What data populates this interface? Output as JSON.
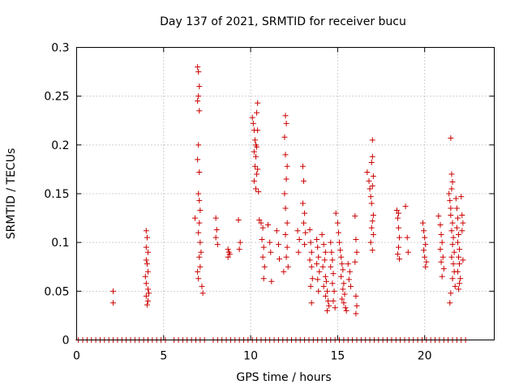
{
  "chart_data": {
    "type": "scatter",
    "title": "Day 137 of 2021, SRMTID for receiver bucu",
    "xlabel": "GPS time / hours",
    "ylabel": "SRMTID / TECUs",
    "xlim": [
      0,
      24
    ],
    "ylim": [
      0,
      0.3
    ],
    "xticks": [
      0,
      5,
      10,
      15,
      20
    ],
    "xtick_labels": [
      "0",
      "5",
      "10",
      "15",
      "20"
    ],
    "yticks": [
      0,
      0.05,
      0.1,
      0.15,
      0.2,
      0.25,
      0.3
    ],
    "ytick_labels": [
      "0",
      "0.05",
      "0.1",
      "0.15",
      "0.2",
      "0.25",
      "0.3"
    ],
    "grid": true,
    "marker": "+",
    "series": [
      {
        "name": "SRMTID",
        "color": "#cc0000",
        "points": [
          [
            2.1,
            0.05
          ],
          [
            2.1,
            0.038
          ],
          [
            4.0,
            0.112
          ],
          [
            4.05,
            0.105
          ],
          [
            4.0,
            0.095
          ],
          [
            4.1,
            0.09
          ],
          [
            4.0,
            0.082
          ],
          [
            4.05,
            0.078
          ],
          [
            4.1,
            0.07
          ],
          [
            3.95,
            0.065
          ],
          [
            4.0,
            0.058
          ],
          [
            4.1,
            0.052
          ],
          [
            4.15,
            0.048
          ],
          [
            4.0,
            0.045
          ],
          [
            4.1,
            0.04
          ],
          [
            4.05,
            0.036
          ],
          [
            6.8,
            0.125
          ],
          [
            6.95,
            0.28
          ],
          [
            7.0,
            0.275
          ],
          [
            7.05,
            0.26
          ],
          [
            7.0,
            0.25
          ],
          [
            6.95,
            0.245
          ],
          [
            7.05,
            0.235
          ],
          [
            7.0,
            0.2
          ],
          [
            6.95,
            0.185
          ],
          [
            7.05,
            0.172
          ],
          [
            7.0,
            0.15
          ],
          [
            7.05,
            0.143
          ],
          [
            7.1,
            0.133
          ],
          [
            7.05,
            0.12
          ],
          [
            7.0,
            0.11
          ],
          [
            7.1,
            0.1
          ],
          [
            7.15,
            0.09
          ],
          [
            7.05,
            0.085
          ],
          [
            7.1,
            0.075
          ],
          [
            6.95,
            0.07
          ],
          [
            7.0,
            0.063
          ],
          [
            7.2,
            0.055
          ],
          [
            7.25,
            0.048
          ],
          [
            8.0,
            0.125
          ],
          [
            8.05,
            0.113
          ],
          [
            8.0,
            0.105
          ],
          [
            8.1,
            0.098
          ],
          [
            8.7,
            0.093
          ],
          [
            8.75,
            0.09
          ],
          [
            8.8,
            0.088
          ],
          [
            8.7,
            0.085
          ],
          [
            9.3,
            0.123
          ],
          [
            9.4,
            0.1
          ],
          [
            9.35,
            0.093
          ],
          [
            10.1,
            0.228
          ],
          [
            10.15,
            0.222
          ],
          [
            10.2,
            0.215
          ],
          [
            10.25,
            0.205
          ],
          [
            10.3,
            0.2
          ],
          [
            10.2,
            0.193
          ],
          [
            10.3,
            0.188
          ],
          [
            10.25,
            0.178
          ],
          [
            10.35,
            0.17
          ],
          [
            10.2,
            0.163
          ],
          [
            10.3,
            0.155
          ],
          [
            10.4,
            0.243
          ],
          [
            10.35,
            0.233
          ],
          [
            10.4,
            0.215
          ],
          [
            10.35,
            0.198
          ],
          [
            10.4,
            0.175
          ],
          [
            10.45,
            0.152
          ],
          [
            10.5,
            0.123
          ],
          [
            10.6,
            0.12
          ],
          [
            10.7,
            0.115
          ],
          [
            10.65,
            0.103
          ],
          [
            10.75,
            0.095
          ],
          [
            10.7,
            0.085
          ],
          [
            10.8,
            0.075
          ],
          [
            10.75,
            0.063
          ],
          [
            11.0,
            0.118
          ],
          [
            11.1,
            0.1
          ],
          [
            11.15,
            0.09
          ],
          [
            11.2,
            0.06
          ],
          [
            11.5,
            0.112
          ],
          [
            11.6,
            0.098
          ],
          [
            11.65,
            0.083
          ],
          [
            12.0,
            0.23
          ],
          [
            12.05,
            0.222
          ],
          [
            11.95,
            0.208
          ],
          [
            12.0,
            0.19
          ],
          [
            12.1,
            0.178
          ],
          [
            12.05,
            0.165
          ],
          [
            11.95,
            0.15
          ],
          [
            12.0,
            0.135
          ],
          [
            12.1,
            0.12
          ],
          [
            12.0,
            0.108
          ],
          [
            12.1,
            0.095
          ],
          [
            12.05,
            0.085
          ],
          [
            12.15,
            0.075
          ],
          [
            11.9,
            0.07
          ],
          [
            12.7,
            0.112
          ],
          [
            12.8,
            0.103
          ],
          [
            12.75,
            0.09
          ],
          [
            13.0,
            0.178
          ],
          [
            13.05,
            0.163
          ],
          [
            13.0,
            0.14
          ],
          [
            13.1,
            0.13
          ],
          [
            13.05,
            0.12
          ],
          [
            13.15,
            0.11
          ],
          [
            13.1,
            0.098
          ],
          [
            13.4,
            0.113
          ],
          [
            13.45,
            0.1
          ],
          [
            13.5,
            0.09
          ],
          [
            13.4,
            0.082
          ],
          [
            13.5,
            0.075
          ],
          [
            13.55,
            0.063
          ],
          [
            13.45,
            0.055
          ],
          [
            13.5,
            0.038
          ],
          [
            13.8,
            0.103
          ],
          [
            13.85,
            0.095
          ],
          [
            13.9,
            0.085
          ],
          [
            13.8,
            0.078
          ],
          [
            13.95,
            0.07
          ],
          [
            13.85,
            0.062
          ],
          [
            13.9,
            0.05
          ],
          [
            14.1,
            0.108
          ],
          [
            14.2,
            0.098
          ],
          [
            14.3,
            0.09
          ],
          [
            14.25,
            0.082
          ],
          [
            14.15,
            0.075
          ],
          [
            14.3,
            0.065
          ],
          [
            14.35,
            0.06
          ],
          [
            14.2,
            0.055
          ],
          [
            14.4,
            0.05
          ],
          [
            14.3,
            0.045
          ],
          [
            14.45,
            0.04
          ],
          [
            14.5,
            0.035
          ],
          [
            14.4,
            0.03
          ],
          [
            14.6,
            0.1
          ],
          [
            14.65,
            0.09
          ],
          [
            14.7,
            0.082
          ],
          [
            14.6,
            0.075
          ],
          [
            14.75,
            0.068
          ],
          [
            14.7,
            0.058
          ],
          [
            14.8,
            0.05
          ],
          [
            14.75,
            0.04
          ],
          [
            14.85,
            0.033
          ],
          [
            14.9,
            0.13
          ],
          [
            15.0,
            0.12
          ],
          [
            15.05,
            0.11
          ],
          [
            15.1,
            0.1
          ],
          [
            15.15,
            0.092
          ],
          [
            15.2,
            0.085
          ],
          [
            15.25,
            0.078
          ],
          [
            15.3,
            0.072
          ],
          [
            15.2,
            0.065
          ],
          [
            15.35,
            0.058
          ],
          [
            15.3,
            0.052
          ],
          [
            15.4,
            0.047
          ],
          [
            15.25,
            0.042
          ],
          [
            15.35,
            0.038
          ],
          [
            15.45,
            0.033
          ],
          [
            15.5,
            0.03
          ],
          [
            15.6,
            0.078
          ],
          [
            15.7,
            0.07
          ],
          [
            15.65,
            0.062
          ],
          [
            15.75,
            0.055
          ],
          [
            16.0,
            0.127
          ],
          [
            16.05,
            0.103
          ],
          [
            16.1,
            0.09
          ],
          [
            16.0,
            0.08
          ],
          [
            16.05,
            0.045
          ],
          [
            16.1,
            0.035
          ],
          [
            16.05,
            0.027
          ],
          [
            16.7,
            0.172
          ],
          [
            16.8,
            0.163
          ],
          [
            16.85,
            0.155
          ],
          [
            16.9,
            0.147
          ],
          [
            16.95,
            0.14
          ],
          [
            17.0,
            0.205
          ],
          [
            17.0,
            0.188
          ],
          [
            16.95,
            0.182
          ],
          [
            17.05,
            0.168
          ],
          [
            17.0,
            0.158
          ],
          [
            17.05,
            0.128
          ],
          [
            17.0,
            0.122
          ],
          [
            16.95,
            0.115
          ],
          [
            17.05,
            0.108
          ],
          [
            16.9,
            0.1
          ],
          [
            17.0,
            0.092
          ],
          [
            18.4,
            0.133
          ],
          [
            18.5,
            0.13
          ],
          [
            18.45,
            0.125
          ],
          [
            18.5,
            0.115
          ],
          [
            18.55,
            0.105
          ],
          [
            18.5,
            0.095
          ],
          [
            18.45,
            0.088
          ],
          [
            18.55,
            0.083
          ],
          [
            18.9,
            0.137
          ],
          [
            19.0,
            0.105
          ],
          [
            19.05,
            0.09
          ],
          [
            19.9,
            0.12
          ],
          [
            19.95,
            0.112
          ],
          [
            20.0,
            0.105
          ],
          [
            20.05,
            0.098
          ],
          [
            19.95,
            0.092
          ],
          [
            20.0,
            0.085
          ],
          [
            20.1,
            0.08
          ],
          [
            20.05,
            0.075
          ],
          [
            20.8,
            0.127
          ],
          [
            20.9,
            0.118
          ],
          [
            20.95,
            0.108
          ],
          [
            21.0,
            0.1
          ],
          [
            20.9,
            0.093
          ],
          [
            21.05,
            0.085
          ],
          [
            20.95,
            0.08
          ],
          [
            21.1,
            0.073
          ],
          [
            21.0,
            0.065
          ],
          [
            21.4,
            0.15
          ],
          [
            21.45,
            0.143
          ],
          [
            21.5,
            0.135
          ],
          [
            21.5,
            0.207
          ],
          [
            21.55,
            0.17
          ],
          [
            21.6,
            0.162
          ],
          [
            21.55,
            0.155
          ],
          [
            21.5,
            0.128
          ],
          [
            21.6,
            0.12
          ],
          [
            21.55,
            0.112
          ],
          [
            21.65,
            0.105
          ],
          [
            21.6,
            0.098
          ],
          [
            21.7,
            0.09
          ],
          [
            21.55,
            0.085
          ],
          [
            21.65,
            0.078
          ],
          [
            21.7,
            0.07
          ],
          [
            21.6,
            0.063
          ],
          [
            21.75,
            0.055
          ],
          [
            21.5,
            0.048
          ],
          [
            21.45,
            0.038
          ],
          [
            21.8,
            0.145
          ],
          [
            21.85,
            0.135
          ],
          [
            21.9,
            0.125
          ],
          [
            21.85,
            0.115
          ],
          [
            21.95,
            0.108
          ],
          [
            21.9,
            0.1
          ],
          [
            22.0,
            0.093
          ],
          [
            21.95,
            0.085
          ],
          [
            22.0,
            0.078
          ],
          [
            21.9,
            0.07
          ],
          [
            22.05,
            0.063
          ],
          [
            22.0,
            0.058
          ],
          [
            21.95,
            0.052
          ],
          [
            22.1,
            0.147
          ],
          [
            22.15,
            0.128
          ],
          [
            22.2,
            0.12
          ],
          [
            22.15,
            0.112
          ],
          [
            22.2,
            0.082
          ]
        ],
        "zero_values_x": [
          0.1,
          0.35,
          0.6,
          0.85,
          1.1,
          1.35,
          1.6,
          1.85,
          2.1,
          2.35,
          2.6,
          2.85,
          3.1,
          3.35,
          3.6,
          3.85,
          4.1,
          4.35,
          4.6,
          4.85,
          5.1,
          5.6,
          5.85,
          6.1,
          6.35,
          6.6,
          6.85,
          7.1,
          7.35,
          7.85,
          8.1,
          8.35,
          8.6,
          8.85,
          9.1,
          9.35,
          9.6,
          9.85,
          10.1,
          10.35,
          10.6,
          10.85,
          11.1,
          11.35,
          11.6,
          11.85,
          12.1,
          12.35,
          12.6,
          12.85,
          13.1,
          13.35,
          13.6,
          13.85,
          14.1,
          14.35,
          14.6,
          14.85,
          15.1,
          15.35,
          15.6,
          15.85,
          16.1,
          16.35,
          16.6,
          16.85,
          17.1,
          17.35,
          17.6,
          17.85,
          18.1,
          18.35,
          18.6,
          18.85,
          19.1,
          19.35,
          19.6,
          19.85,
          20.1,
          20.35,
          20.6,
          20.85,
          21.1,
          21.35,
          21.6,
          21.85,
          22.1,
          22.35
        ]
      }
    ]
  }
}
